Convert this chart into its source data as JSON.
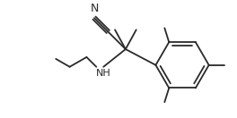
{
  "bg_color": "#ffffff",
  "line_color": "#2a2a2a",
  "text_color": "#2a2a2a",
  "figsize": [
    2.64,
    1.32
  ],
  "dpi": 100,
  "lw": 1.3
}
